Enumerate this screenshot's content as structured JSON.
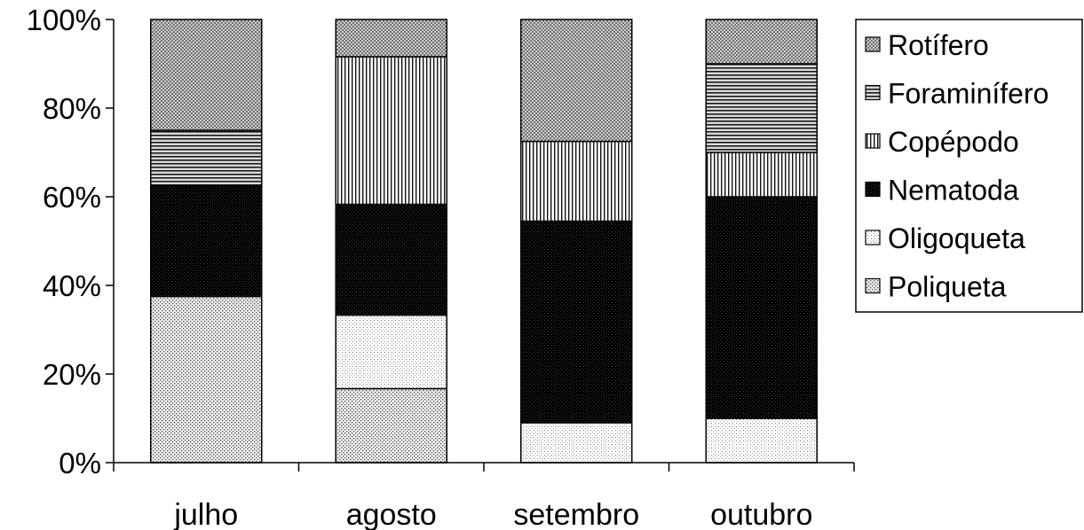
{
  "chart_data": {
    "type": "bar",
    "stacked": true,
    "percent": true,
    "categories": [
      "julho",
      "agosto",
      "setembro",
      "outubro"
    ],
    "y_ticks": [
      "0%",
      "20%",
      "40%",
      "60%",
      "80%",
      "100%"
    ],
    "ylim": [
      0,
      100
    ],
    "grid": false,
    "legend_position": "right",
    "series": [
      {
        "name": "Poliqueta",
        "values": [
          37.5,
          16.7,
          0,
          0
        ]
      },
      {
        "name": "Oligoqueta",
        "values": [
          0,
          16.6,
          9,
          10
        ]
      },
      {
        "name": "Nematoda",
        "values": [
          25,
          25,
          45.5,
          50
        ]
      },
      {
        "name": "Copépodo",
        "values": [
          0,
          33.3,
          18,
          10
        ]
      },
      {
        "name": "Foraminífero",
        "values": [
          12.5,
          0,
          0,
          20
        ]
      },
      {
        "name": "Rotífero",
        "values": [
          25,
          8.4,
          27.5,
          10
        ]
      }
    ],
    "patterns": {
      "Poliqueta": "dense-dots",
      "Oligoqueta": "sparse-dots",
      "Nematoda": "black-dotted",
      "Copépodo": "vertical-lines",
      "Foraminífero": "horizontal-lines",
      "Rotífero": "crosshatch"
    },
    "colors": {
      "outline": "#000000",
      "background": "#ffffff"
    }
  }
}
